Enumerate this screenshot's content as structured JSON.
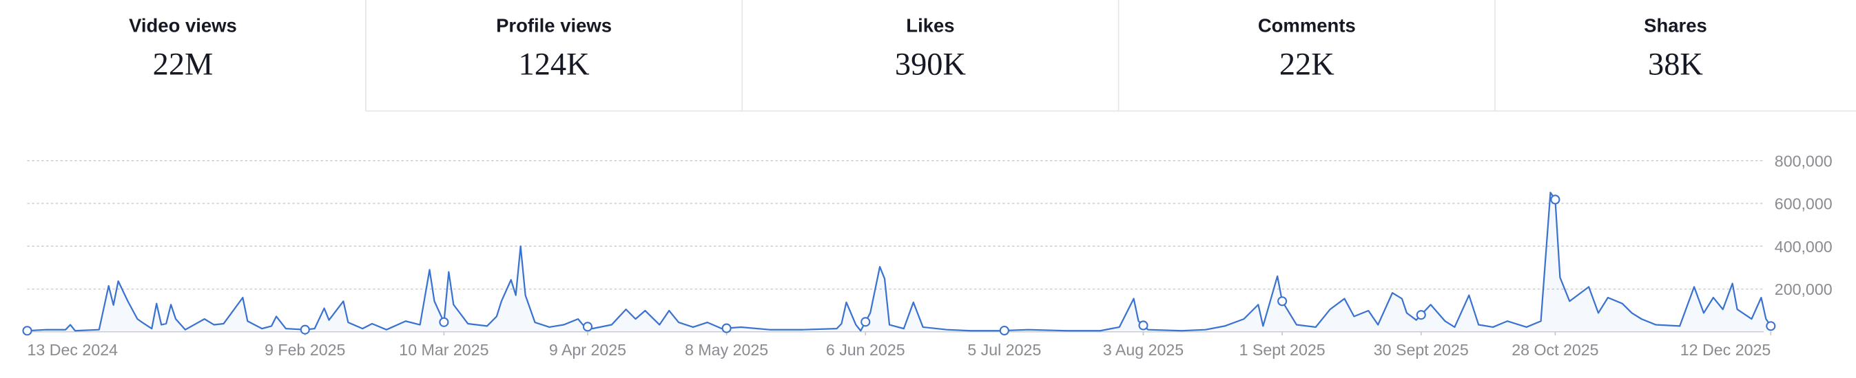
{
  "tabs": [
    {
      "label": "Video views",
      "value": "22M"
    },
    {
      "label": "Profile views",
      "value": "124K"
    },
    {
      "label": "Likes",
      "value": "390K"
    },
    {
      "label": "Comments",
      "value": "22K"
    },
    {
      "label": "Shares",
      "value": "38K"
    }
  ],
  "selected_tab": 0,
  "chart_data": {
    "type": "line",
    "color": "#3a72d0",
    "grid": true,
    "xlim": [
      "2024-12-13",
      "2025-12-12"
    ],
    "xticks": [
      {
        "value": "2024-12-13",
        "label": "13 Dec 2024"
      },
      {
        "value": "2025-02-09",
        "label": "9 Feb 2025"
      },
      {
        "value": "2025-03-10",
        "label": "10 Mar 2025"
      },
      {
        "value": "2025-04-09",
        "label": "9 Apr 2025"
      },
      {
        "value": "2025-05-08",
        "label": "8 May 2025"
      },
      {
        "value": "2025-06-06",
        "label": "6 Jun 2025"
      },
      {
        "value": "2025-07-05",
        "label": "5 Jul 2025"
      },
      {
        "value": "2025-08-03",
        "label": "3 Aug 2025"
      },
      {
        "value": "2025-09-01",
        "label": "1 Sept 2025"
      },
      {
        "value": "2025-09-30",
        "label": "30 Sept 2025"
      },
      {
        "value": "2025-10-28",
        "label": "28 Oct 2025"
      },
      {
        "value": "2025-12-12",
        "label": "12 Dec 2025"
      }
    ],
    "ylim": [
      0,
      800000
    ],
    "yticks": [
      {
        "value": 200000,
        "label": "200,000"
      },
      {
        "value": 400000,
        "label": "400,000"
      },
      {
        "value": 600000,
        "label": "600,000"
      },
      {
        "value": 800000,
        "label": "800,000"
      }
    ],
    "x": [
      "2024-12-13",
      "2024-12-17",
      "2024-12-21",
      "2024-12-22",
      "2024-12-23",
      "2024-12-28",
      "2024-12-30",
      "2024-12-31",
      "2025-01-01",
      "2025-01-03",
      "2025-01-05",
      "2025-01-06",
      "2025-01-08",
      "2025-01-09",
      "2025-01-10",
      "2025-01-11",
      "2025-01-12",
      "2025-01-13",
      "2025-01-15",
      "2025-01-19",
      "2025-01-21",
      "2025-01-23",
      "2025-01-27",
      "2025-01-28",
      "2025-01-31",
      "2025-02-02",
      "2025-02-03",
      "2025-02-05",
      "2025-02-09",
      "2025-02-11",
      "2025-02-13",
      "2025-02-14",
      "2025-02-17",
      "2025-02-18",
      "2025-02-21",
      "2025-02-23",
      "2025-02-26",
      "2025-03-02",
      "2025-03-05",
      "2025-03-07",
      "2025-03-08",
      "2025-03-10",
      "2025-03-11",
      "2025-03-12",
      "2025-03-15",
      "2025-03-19",
      "2025-03-21",
      "2025-03-22",
      "2025-03-24",
      "2025-03-25",
      "2025-03-26",
      "2025-03-27",
      "2025-03-29",
      "2025-04-01",
      "2025-04-04",
      "2025-04-07",
      "2025-04-08",
      "2025-04-10",
      "2025-04-14",
      "2025-04-17",
      "2025-04-19",
      "2025-04-21",
      "2025-04-24",
      "2025-04-26",
      "2025-04-28",
      "2025-05-01",
      "2025-05-04",
      "2025-05-07",
      "2025-05-11",
      "2025-05-17",
      "2025-05-24",
      "2025-05-31",
      "2025-06-01",
      "2025-06-02",
      "2025-06-04",
      "2025-06-05",
      "2025-06-07",
      "2025-06-09",
      "2025-06-10",
      "2025-06-11",
      "2025-06-14",
      "2025-06-16",
      "2025-06-18",
      "2025-06-23",
      "2025-06-28",
      "2025-07-04",
      "2025-07-10",
      "2025-07-18",
      "2025-07-25",
      "2025-07-29",
      "2025-08-01",
      "2025-08-02",
      "2025-08-04",
      "2025-08-11",
      "2025-08-16",
      "2025-08-20",
      "2025-08-24",
      "2025-08-27",
      "2025-08-28",
      "2025-08-30",
      "2025-08-31",
      "2025-09-01",
      "2025-09-04",
      "2025-09-08",
      "2025-09-11",
      "2025-09-14",
      "2025-09-16",
      "2025-09-19",
      "2025-09-21",
      "2025-09-24",
      "2025-09-26",
      "2025-09-27",
      "2025-09-29",
      "2025-10-02",
      "2025-10-05",
      "2025-10-07",
      "2025-10-10",
      "2025-10-12",
      "2025-10-15",
      "2025-10-18",
      "2025-10-22",
      "2025-10-25",
      "2025-10-27",
      "2025-10-28",
      "2025-10-29",
      "2025-10-31",
      "2025-11-04",
      "2025-11-06",
      "2025-11-08",
      "2025-11-11",
      "2025-11-13",
      "2025-11-15",
      "2025-11-18",
      "2025-11-23",
      "2025-11-26",
      "2025-11-28",
      "2025-11-30",
      "2025-12-02",
      "2025-12-04",
      "2025-12-05",
      "2025-12-08",
      "2025-12-10",
      "2025-12-11",
      "2025-12-12"
    ],
    "values": [
      5000,
      10000,
      10000,
      33000,
      5000,
      10000,
      215000,
      125000,
      237000,
      143000,
      60000,
      44000,
      15000,
      132000,
      33000,
      38000,
      127000,
      60000,
      10000,
      60000,
      33000,
      38000,
      160000,
      50000,
      15000,
      27000,
      72000,
      15000,
      10000,
      15000,
      110000,
      55000,
      143000,
      44000,
      15000,
      38000,
      10000,
      50000,
      33000,
      290000,
      143000,
      45000,
      280000,
      127000,
      38000,
      27000,
      72000,
      143000,
      243000,
      171000,
      400000,
      171000,
      44000,
      22000,
      33000,
      60000,
      33000,
      15000,
      33000,
      105000,
      60000,
      99000,
      33000,
      99000,
      44000,
      22000,
      44000,
      15000,
      22000,
      10000,
      10000,
      15000,
      38000,
      138000,
      33000,
      5000,
      88000,
      304000,
      248000,
      33000,
      15000,
      138000,
      22000,
      10000,
      5000,
      5000,
      10000,
      5000,
      5000,
      22000,
      155000,
      50000,
      10000,
      5000,
      10000,
      27000,
      60000,
      127000,
      27000,
      182000,
      260000,
      143000,
      33000,
      22000,
      105000,
      155000,
      72000,
      99000,
      33000,
      182000,
      155000,
      88000,
      55000,
      127000,
      50000,
      22000,
      171000,
      33000,
      22000,
      50000,
      22000,
      50000,
      651000,
      618000,
      254000,
      143000,
      210000,
      88000,
      160000,
      132000,
      88000,
      60000,
      33000,
      27000,
      210000,
      88000,
      160000,
      105000,
      226000,
      105000,
      60000,
      160000,
      60000,
      27000
    ]
  }
}
